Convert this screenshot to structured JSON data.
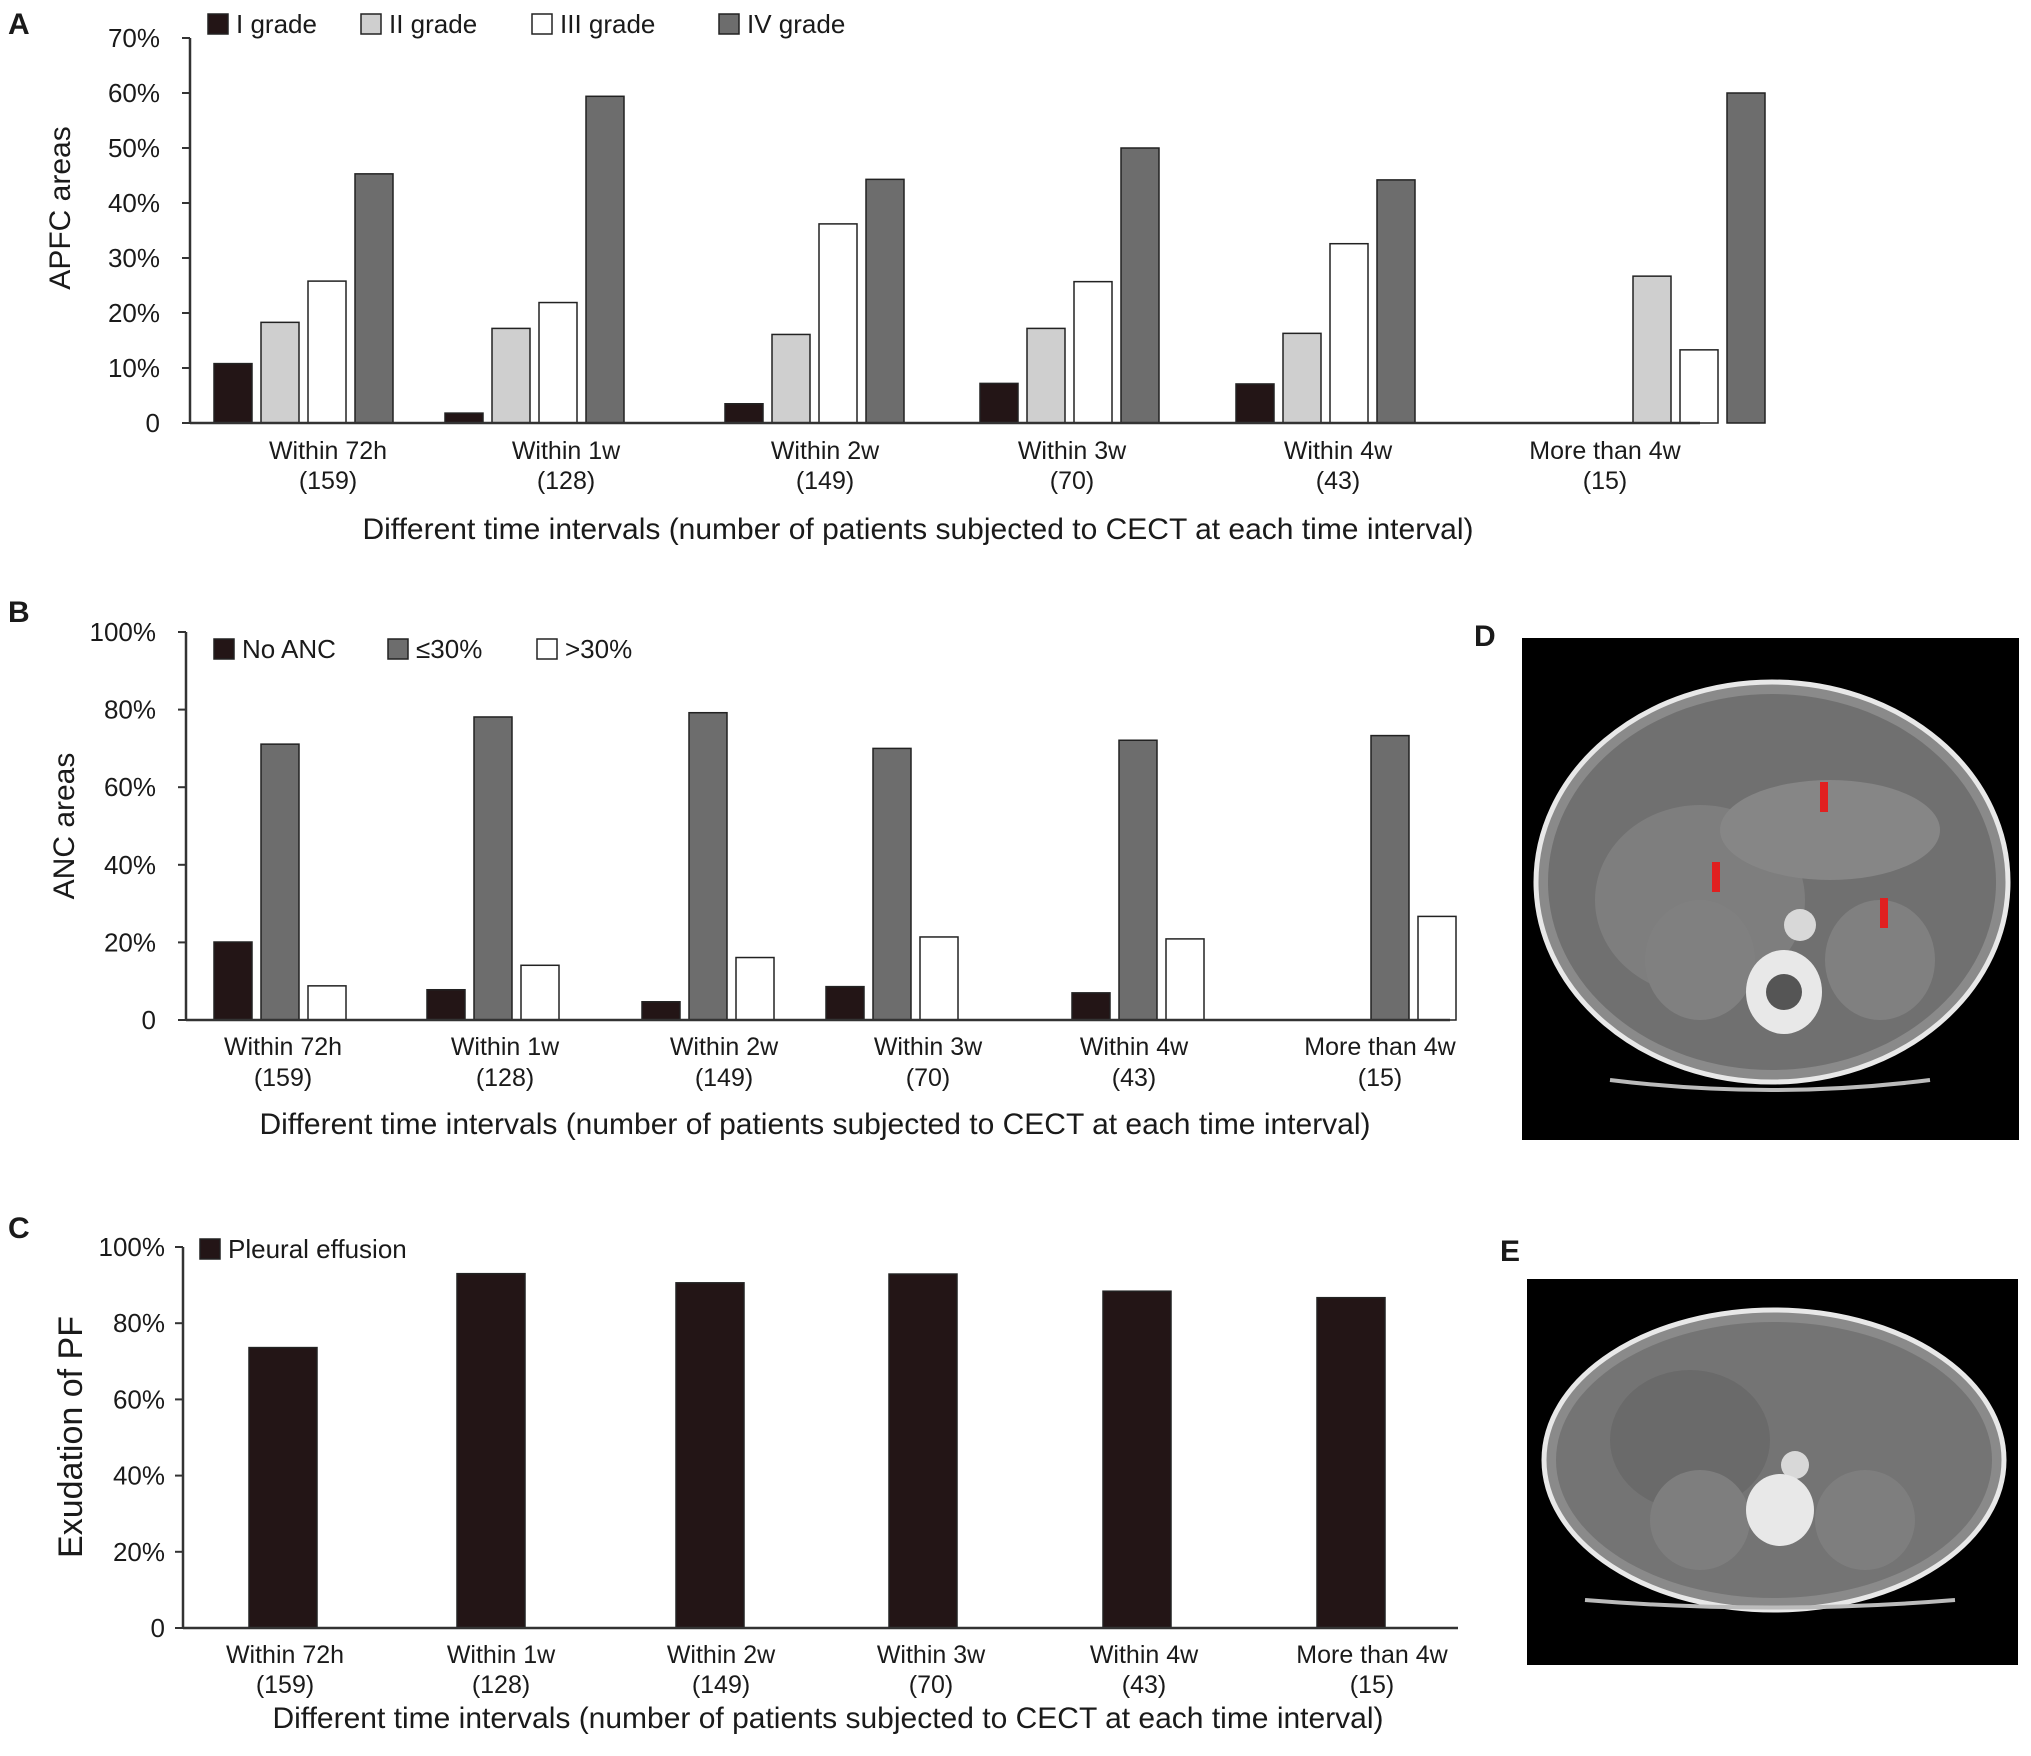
{
  "panels": {
    "A": {
      "letter": "A"
    },
    "B": {
      "letter": "B"
    },
    "C": {
      "letter": "C"
    },
    "D": {
      "letter": "D"
    },
    "E": {
      "letter": "E"
    }
  },
  "colors": {
    "black": "#231516",
    "dark_gray": "#6d6d6d",
    "light_gray": "#cfcfcf",
    "white": "#ffffff",
    "arrow_red": "#e02020"
  },
  "chart_data": [
    {
      "id": "A",
      "type": "bar",
      "categories": [
        "Within 72h",
        "Within 1w",
        "Within 2w",
        "Within 3w",
        "Within 4w",
        "More than 4w"
      ],
      "category_counts": [
        "(159)",
        "(128)",
        "(149)",
        "(70)",
        "(43)",
        "(15)"
      ],
      "series": [
        {
          "name": "I grade",
          "color": "#231516",
          "values": [
            10.8,
            1.8,
            3.5,
            7.2,
            7.1,
            0
          ]
        },
        {
          "name": "II grade",
          "color": "#cfcfcf",
          "values": [
            18.3,
            17.2,
            16.1,
            17.2,
            16.3,
            26.7
          ]
        },
        {
          "name": "III grade",
          "color": "#ffffff",
          "values": [
            25.8,
            21.9,
            36.2,
            25.7,
            32.6,
            13.3
          ]
        },
        {
          "name": "IV grade",
          "color": "#6d6d6d",
          "values": [
            45.3,
            59.4,
            44.3,
            50.0,
            44.2,
            60.0
          ]
        }
      ],
      "xlabel": "Different time intervals (number of patients subjected to CECT at each time interval)",
      "ylabel": "APFC areas",
      "ylim": [
        0,
        70
      ],
      "yticks": [
        "0",
        "10%",
        "20%",
        "30%",
        "40%",
        "50%",
        "60%",
        "70%"
      ],
      "legend_position": "top-left"
    },
    {
      "id": "B",
      "type": "bar",
      "categories": [
        "Within 72h",
        "Within 1w",
        "Within 2w",
        "Within 3w",
        "Within 4w",
        "More than 4w"
      ],
      "category_counts": [
        "(159)",
        "(128)",
        "(149)",
        "(70)",
        "(43)",
        "(15)"
      ],
      "series": [
        {
          "name": "No ANC",
          "color": "#231516",
          "values": [
            20.1,
            7.8,
            4.7,
            8.6,
            7.0,
            0
          ]
        },
        {
          "name": "≤30%",
          "color": "#6d6d6d",
          "values": [
            71.1,
            78.1,
            79.2,
            70.0,
            72.1,
            73.3
          ]
        },
        {
          "name": ">30%",
          "color": "#ffffff",
          "values": [
            8.8,
            14.1,
            16.1,
            21.4,
            20.9,
            26.7
          ]
        }
      ],
      "xlabel": "Different time intervals (number of patients subjected to CECT at each time interval)",
      "ylabel": "ANC areas",
      "ylim": [
        0,
        100
      ],
      "yticks": [
        "0",
        "20%",
        "40%",
        "60%",
        "80%",
        "100%"
      ],
      "legend_position": "top-left"
    },
    {
      "id": "C",
      "type": "bar",
      "categories": [
        "Within 72h",
        "Within 1w",
        "Within 2w",
        "Within 3w",
        "Within 4w",
        "More than 4w"
      ],
      "category_counts": [
        "(159)",
        "(128)",
        "(149)",
        "(70)",
        "(43)",
        "(15)"
      ],
      "series": [
        {
          "name": "Pleural effusion",
          "color": "#231516",
          "values": [
            73.6,
            93.0,
            90.6,
            92.9,
            88.4,
            86.7
          ]
        }
      ],
      "xlabel": "Different time intervals (number of patients subjected to CECT at each time interval)",
      "ylabel": "Exudation of PF",
      "ylim": [
        0,
        100
      ],
      "yticks": [
        "0",
        "20%",
        "40%",
        "60%",
        "80%",
        "100%"
      ],
      "legend_position": "top-left"
    }
  ]
}
